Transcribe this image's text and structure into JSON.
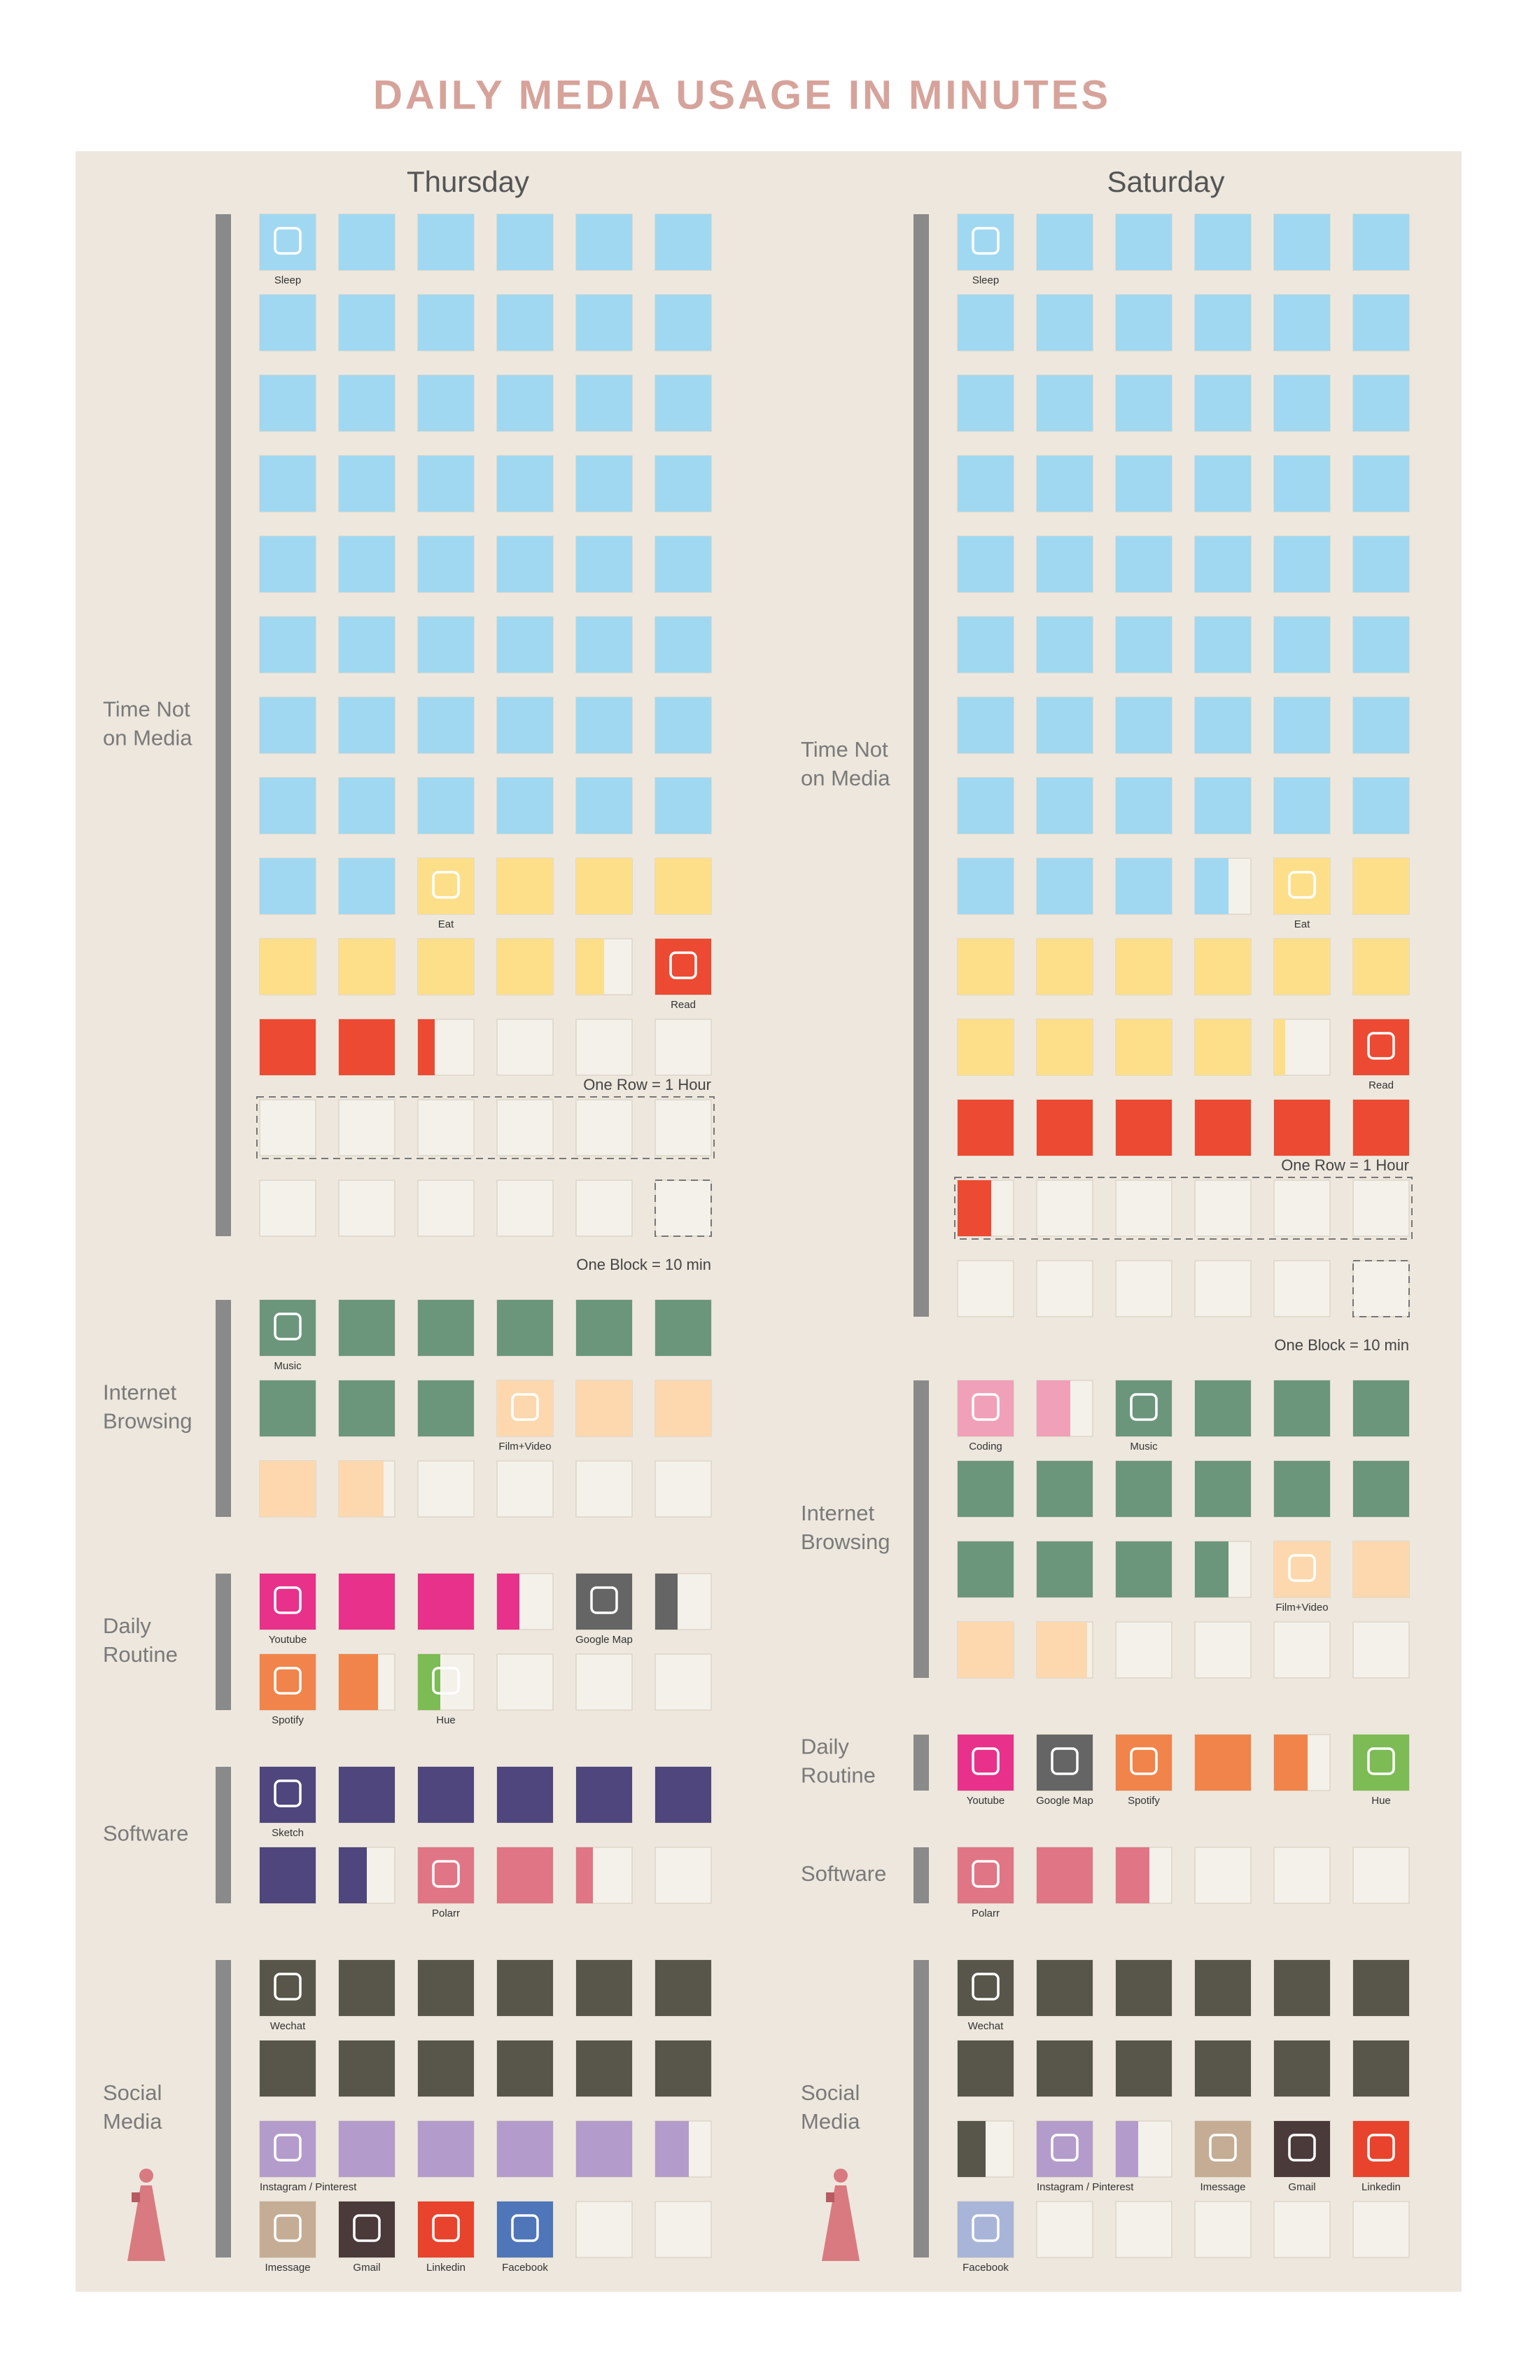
{
  "title": "DAILY MEDIA USAGE IN MINUTES",
  "panels": [
    {
      "day": "Thursday",
      "row_note": "One Row = 1 Hour",
      "block_note": "One Block = 10 min",
      "sections": [
        {
          "label": [
            "Time Not",
            "on Media"
          ],
          "activities": [
            {
              "name": "Sleep",
              "minutes": 500,
              "color": "#a0d8f1"
            },
            {
              "name": "Eat",
              "minutes": 85,
              "color": "#fddf8a"
            },
            {
              "name": "Read",
              "minutes": 33,
              "color": "#ec4a33"
            }
          ]
        },
        {
          "label": [
            "Internet",
            "Browsing"
          ],
          "activities": [
            {
              "name": "Music",
              "minutes": 90,
              "color": "#6b967c"
            },
            {
              "name": "Film+Video",
              "minutes": 48,
              "color": "#fdd8ae"
            }
          ]
        },
        {
          "label": [
            "Daily",
            "Routine"
          ],
          "activities": [
            {
              "name": "Youtube",
              "minutes": 34,
              "color": "#e8318a"
            },
            {
              "name": "Google Map",
              "minutes": 14,
              "color": "#656565"
            },
            {
              "name": "Spotify",
              "minutes": 17,
              "color": "#f0844a"
            },
            {
              "name": "Hue",
              "minutes": 4,
              "color": "#7dbb55"
            }
          ]
        },
        {
          "label": [
            "Software"
          ],
          "activities": [
            {
              "name": "Sketch",
              "minutes": 75,
              "color": "#4e467c"
            },
            {
              "name": "Polarr",
              "minutes": 23,
              "color": "#e07585"
            }
          ]
        },
        {
          "label": [
            "Social",
            "Media"
          ],
          "activities": [
            {
              "name": "Wechat",
              "minutes": 120,
              "color": "#58564a"
            },
            {
              "name": "Instagram / Pinterest",
              "minutes": 56,
              "color": "#b39ccb"
            },
            {
              "name": "Imessage",
              "minutes": 10,
              "color": "#c4ad94"
            },
            {
              "name": "Gmail",
              "minutes": 10,
              "color": "#4b3a3a"
            },
            {
              "name": "Linkedin",
              "minutes": 10,
              "color": "#e8432d"
            },
            {
              "name": "Facebook",
              "minutes": 10,
              "color": "#4f76b9"
            }
          ]
        }
      ]
    },
    {
      "day": "Saturday",
      "row_note": "One Row = 1 Hour",
      "block_note": "One Block = 10 min",
      "sections": [
        {
          "label": [
            "Time Not",
            "on Media"
          ],
          "activities": [
            {
              "name": "Sleep",
              "minutes": 516,
              "color": "#a0d8f1"
            },
            {
              "name": "Eat",
              "minutes": 122,
              "color": "#fddf8a"
            },
            {
              "name": "Read",
              "minutes": 76,
              "color": "#ec4a33"
            }
          ]
        },
        {
          "label": [
            "Internet",
            "Browsing"
          ],
          "activities": [
            {
              "name": "Coding",
              "minutes": 16,
              "color": "#f1a0b9"
            },
            {
              "name": "Music",
              "minutes": 136,
              "color": "#6b967c"
            },
            {
              "name": "Film+Video",
              "minutes": 39,
              "color": "#fdd8ae"
            }
          ]
        },
        {
          "label": [
            "Daily",
            "Routine"
          ],
          "activities": [
            {
              "name": "Youtube",
              "minutes": 10,
              "color": "#e8318a"
            },
            {
              "name": "Google Map",
              "minutes": 10,
              "color": "#656565"
            },
            {
              "name": "Spotify",
              "minutes": 26,
              "color": "#f0844a"
            },
            {
              "name": "Hue",
              "minutes": 10,
              "color": "#7dbb55"
            }
          ]
        },
        {
          "label": [
            "Software"
          ],
          "activities": [
            {
              "name": "Polarr",
              "minutes": 26,
              "color": "#e07585"
            }
          ]
        },
        {
          "label": [
            "Social",
            "Media"
          ],
          "activities": [
            {
              "name": "Wechat",
              "minutes": 125,
              "color": "#58564a"
            },
            {
              "name": "Instagram / Pinterest",
              "minutes": 14,
              "color": "#b39ccb"
            },
            {
              "name": "Imessage",
              "minutes": 10,
              "color": "#c4ad94"
            },
            {
              "name": "Gmail",
              "minutes": 10,
              "color": "#4b3a3a"
            },
            {
              "name": "Linkedin",
              "minutes": 10,
              "color": "#e8432d"
            },
            {
              "name": "Facebook",
              "minutes": 10,
              "color": "#a9b5d8"
            }
          ]
        }
      ]
    }
  ]
}
